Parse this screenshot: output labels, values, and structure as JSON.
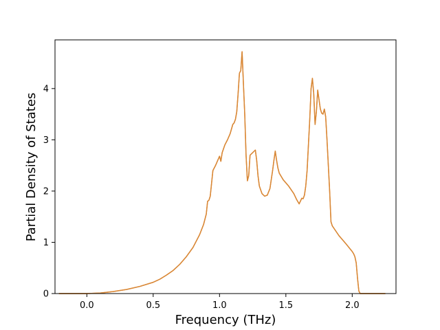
{
  "chart_data": {
    "type": "line",
    "xlabel": "Frequency (THz)",
    "ylabel": "Partial Density of States",
    "xlim": [
      -0.24,
      2.33
    ],
    "ylim": [
      0,
      4.95
    ],
    "xticks": [
      0.0,
      0.5,
      1.0,
      1.5,
      2.0
    ],
    "xtick_labels": [
      "0.0",
      "0.5",
      "1.0",
      "1.5",
      "2.0"
    ],
    "yticks": [
      0,
      1,
      2,
      3,
      4
    ],
    "ytick_labels": [
      "0",
      "1",
      "2",
      "3",
      "4"
    ],
    "grid": false,
    "legend": "none",
    "series": [
      {
        "color": "#ff7f0e",
        "overlay_color": "#d4883a",
        "x": [
          -0.21,
          -0.1,
          0.0,
          0.1,
          0.2,
          0.3,
          0.4,
          0.5,
          0.55,
          0.6,
          0.65,
          0.7,
          0.75,
          0.8,
          0.85,
          0.88,
          0.9,
          0.91,
          0.92,
          0.93,
          0.95,
          0.97,
          1.0,
          1.01,
          1.02,
          1.04,
          1.06,
          1.08,
          1.1,
          1.11,
          1.12,
          1.13,
          1.14,
          1.15,
          1.16,
          1.17,
          1.18,
          1.19,
          1.2,
          1.21,
          1.22,
          1.23,
          1.25,
          1.27,
          1.28,
          1.29,
          1.3,
          1.32,
          1.34,
          1.36,
          1.38,
          1.4,
          1.41,
          1.42,
          1.43,
          1.44,
          1.45,
          1.48,
          1.52,
          1.56,
          1.58,
          1.6,
          1.62,
          1.63,
          1.64,
          1.65,
          1.66,
          1.67,
          1.68,
          1.69,
          1.7,
          1.71,
          1.72,
          1.73,
          1.74,
          1.75,
          1.76,
          1.77,
          1.78,
          1.79,
          1.8,
          1.81,
          1.82,
          1.83,
          1.84,
          1.85,
          1.9,
          1.95,
          2.0,
          2.01,
          2.02,
          2.03,
          2.04,
          2.05,
          2.06,
          2.1,
          2.2,
          2.25
        ],
        "y": [
          0,
          0,
          0,
          0.01,
          0.04,
          0.08,
          0.14,
          0.22,
          0.28,
          0.36,
          0.45,
          0.57,
          0.72,
          0.9,
          1.15,
          1.35,
          1.55,
          1.8,
          1.82,
          1.9,
          2.4,
          2.5,
          2.68,
          2.58,
          2.75,
          2.9,
          3.0,
          3.12,
          3.3,
          3.33,
          3.4,
          3.55,
          3.9,
          4.3,
          4.35,
          4.72,
          4.1,
          3.5,
          2.7,
          2.2,
          2.3,
          2.7,
          2.75,
          2.8,
          2.6,
          2.3,
          2.1,
          1.95,
          1.9,
          1.92,
          2.05,
          2.4,
          2.6,
          2.78,
          2.6,
          2.45,
          2.35,
          2.22,
          2.1,
          1.95,
          1.84,
          1.75,
          1.86,
          1.85,
          1.92,
          2.1,
          2.4,
          2.9,
          3.4,
          4.0,
          4.2,
          3.9,
          3.3,
          3.55,
          3.97,
          3.78,
          3.6,
          3.52,
          3.5,
          3.6,
          3.45,
          3.0,
          2.5,
          2.0,
          1.4,
          1.32,
          1.13,
          0.98,
          0.82,
          0.78,
          0.72,
          0.6,
          0.3,
          0.05,
          0,
          0,
          0,
          0
        ]
      }
    ]
  }
}
